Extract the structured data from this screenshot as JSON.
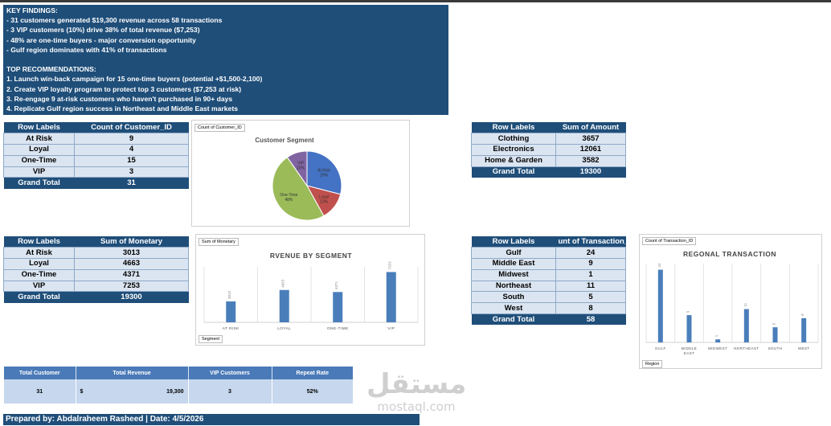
{
  "findings": {
    "lines": [
      "KEY FINDINGS:",
      "- 31 customers generated $19,300 revenue across 58 transactions",
      "- 3 VIP customers (10%) drive 38% of total revenue ($7,253)",
      "- 48% are one-time buyers - major conversion opportunity",
      "- Gulf region dominates with 41% of transactions",
      "",
      "TOP RECOMMENDATIONS:",
      "1. Launch win-back campaign for 15 one-time buyers (potential +$1,500-2,100)",
      "2. Create VIP loyalty program to protect top 3 customers ($7,253 at risk)",
      "3. Re-engage 9 at-risk customers who haven't purchased in 90+ days",
      "4. Replicate Gulf region success in Northeast and Middle East markets"
    ]
  },
  "pivot_count": {
    "headers": [
      "Row Labels",
      "Count of Customer_ID"
    ],
    "rows": [
      {
        "label": "At Risk",
        "value": "9"
      },
      {
        "label": "Loyal",
        "value": "4"
      },
      {
        "label": "One-Time",
        "value": "15"
      },
      {
        "label": "VIP",
        "value": "3"
      }
    ],
    "total": {
      "label": "Grand Total",
      "value": "31"
    }
  },
  "pivot_amount": {
    "headers": [
      "Row Labels",
      "Sum of Amount"
    ],
    "rows": [
      {
        "label": "Clothing",
        "value": "3657"
      },
      {
        "label": "Electronics",
        "value": "12061"
      },
      {
        "label": "Home & Garden",
        "value": "3582"
      }
    ],
    "total": {
      "label": "Grand Total",
      "value": "19300"
    }
  },
  "pivot_monetary": {
    "headers": [
      "Row Labels",
      "Sum of Monetary"
    ],
    "rows": [
      {
        "label": "At Risk",
        "value": "3013"
      },
      {
        "label": "Loyal",
        "value": "4663"
      },
      {
        "label": "One-Time",
        "value": "4371"
      },
      {
        "label": "VIP",
        "value": "7253"
      }
    ],
    "total": {
      "label": "Grand Total",
      "value": "19300"
    }
  },
  "pivot_region": {
    "headers": [
      "Row Labels",
      "unt of Transaction_ID"
    ],
    "rows": [
      {
        "label": "Gulf",
        "value": "24"
      },
      {
        "label": "Middle East",
        "value": "9"
      },
      {
        "label": "Midwest",
        "value": "1"
      },
      {
        "label": "Northeast",
        "value": "11"
      },
      {
        "label": "South",
        "value": "5"
      },
      {
        "label": "West",
        "value": "8"
      }
    ],
    "total": {
      "label": "Grand Total",
      "value": "58"
    }
  },
  "kpi": {
    "headers": [
      "Total Customer",
      "Total Revenue",
      "VIP Customers",
      "Repeat Rate"
    ],
    "values": {
      "customers": "31",
      "currency": "$",
      "revenue": "19,300",
      "vip": "3",
      "repeat": "52%"
    }
  },
  "footer": {
    "text": "Prepared by: Abdalraheem Rasheed | Date: 4/5/2026"
  },
  "watermark": {
    "arabic": "مستقل",
    "latin": "mostaql.com"
  },
  "chart_data": [
    {
      "type": "pie",
      "field_button": "Count of Customer_ID",
      "title": "Customer Segment",
      "labels": [
        "At Risk",
        "Loyal",
        "One-Time",
        "VIP"
      ],
      "values": [
        9,
        4,
        15,
        3
      ],
      "percent_labels": [
        "29%",
        "13%",
        "48%",
        "10%"
      ],
      "colors": [
        "#4472c4",
        "#c0504d",
        "#9bbb59",
        "#8064a2"
      ]
    },
    {
      "type": "bar",
      "field_button": "Sum of Monetary",
      "title": "RVENUE BY SEGMENT",
      "categories": [
        "AT RISK",
        "LOYAL",
        "ONE-TIME",
        "VIP"
      ],
      "values": [
        3013,
        4663,
        4371,
        7253
      ],
      "axis_button": "Segment",
      "color": "#4a7ebb"
    },
    {
      "type": "bar",
      "field_button": "Count of Transaction_ID",
      "title": "REGONAL TRANSACTION",
      "categories": [
        "GULF",
        "MIDDLE EAST",
        "MIDWEST",
        "NORTHEAST",
        "SOUTH",
        "WEST"
      ],
      "values": [
        24,
        9,
        1,
        11,
        5,
        8
      ],
      "axis_button": "Region",
      "color": "#4a7ebb"
    }
  ]
}
